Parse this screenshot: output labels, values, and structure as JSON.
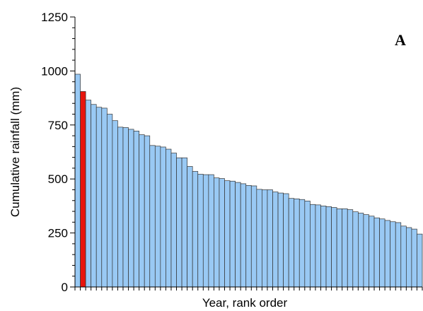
{
  "chart_data": {
    "type": "bar",
    "panel_label": "A",
    "xlabel": "Year, rank order",
    "ylabel": "Cumulative rainfall (mm)",
    "ylim": [
      0,
      1250
    ],
    "yticks": [
      0,
      250,
      500,
      750,
      1000,
      1250
    ],
    "ytick_labels": [
      "0",
      "250",
      "500",
      "750",
      "1000",
      "1250"
    ],
    "y_minor_step": 50,
    "grid": false,
    "legend": "none",
    "highlight_index": 1,
    "colors": {
      "bar": "#99c9f4",
      "highlight": "#e8150c",
      "edge": "#333333"
    },
    "values": [
      985,
      905,
      865,
      845,
      832,
      828,
      800,
      770,
      740,
      738,
      730,
      722,
      705,
      700,
      655,
      652,
      648,
      638,
      620,
      598,
      598,
      558,
      535,
      522,
      520,
      520,
      505,
      502,
      492,
      490,
      484,
      478,
      470,
      468,
      452,
      450,
      450,
      440,
      435,
      432,
      410,
      408,
      405,
      398,
      382,
      380,
      375,
      372,
      368,
      362,
      362,
      358,
      348,
      342,
      335,
      328,
      320,
      315,
      308,
      302,
      298,
      282,
      275,
      268,
      245
    ]
  }
}
